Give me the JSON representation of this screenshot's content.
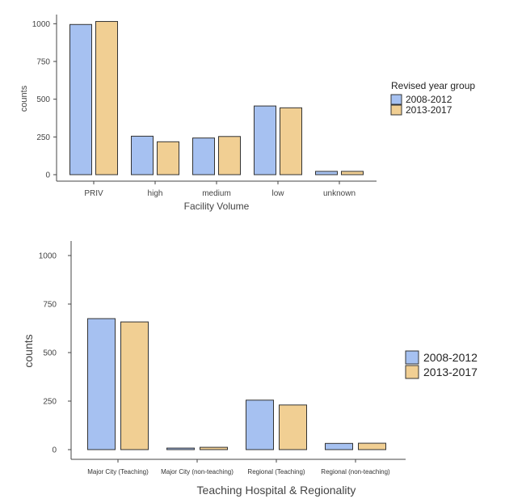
{
  "colors": {
    "series_1": "#a6c1f1",
    "series_2": "#f1cf93",
    "stroke": "#333333"
  },
  "chart_data": [
    {
      "type": "bar",
      "title": "",
      "xlabel": "Facility Volume",
      "ylabel": "counts",
      "categories": [
        "PRIV",
        "high",
        "medium",
        "low",
        "unknown"
      ],
      "series": [
        {
          "name": "2008-2012",
          "values": [
            995,
            255,
            243,
            455,
            22
          ]
        },
        {
          "name": "2013-2017",
          "values": [
            1015,
            218,
            253,
            443,
            22
          ]
        }
      ],
      "ylim": [
        0,
        1050
      ],
      "yticks": [
        0,
        250,
        500,
        750,
        1000
      ],
      "legend": {
        "title": "Revised year group",
        "position": "right"
      },
      "grid": false
    },
    {
      "type": "bar",
      "title": "",
      "xlabel": "Teaching Hospital & Regionality",
      "ylabel": "counts",
      "categories": [
        "Major City (Teaching)",
        "Major City (non-teaching)",
        "Regional (Teaching)",
        "Regional (non-teaching)"
      ],
      "series": [
        {
          "name": "2008-2012",
          "values": [
            675,
            8,
            255,
            32
          ]
        },
        {
          "name": "2013-2017",
          "values": [
            658,
            12,
            230,
            33
          ]
        }
      ],
      "ylim": [
        0,
        1065
      ],
      "yticks": [
        0,
        250,
        500,
        750,
        1000
      ],
      "legend": {
        "title": "",
        "position": "right"
      },
      "grid": false
    }
  ]
}
